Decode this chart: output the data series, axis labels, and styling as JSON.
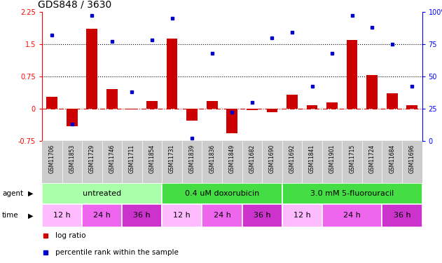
{
  "title": "GDS848 / 3630",
  "samples": [
    "GSM11706",
    "GSM11853",
    "GSM11729",
    "GSM11746",
    "GSM11711",
    "GSM11854",
    "GSM11731",
    "GSM11839",
    "GSM11836",
    "GSM11849",
    "GSM11682",
    "GSM11690",
    "GSM11692",
    "GSM11841",
    "GSM11901",
    "GSM11715",
    "GSM11724",
    "GSM11684",
    "GSM11696"
  ],
  "log_ratio": [
    0.28,
    -0.42,
    1.85,
    0.45,
    -0.02,
    0.18,
    1.62,
    -0.28,
    0.18,
    -0.58,
    -0.04,
    -0.08,
    0.32,
    0.08,
    0.14,
    1.6,
    0.78,
    0.35,
    0.07
  ],
  "percentile": [
    82,
    13,
    97,
    77,
    38,
    78,
    95,
    2,
    68,
    22,
    30,
    80,
    84,
    42,
    68,
    97,
    88,
    75,
    42
  ],
  "ylim_left": [
    -0.75,
    2.25
  ],
  "ylim_right": [
    0,
    100
  ],
  "yticks_left": [
    -0.75,
    0,
    0.75,
    1.5,
    2.25
  ],
  "yticks_right": [
    0,
    25,
    50,
    75,
    100
  ],
  "hlines": [
    0.75,
    1.5
  ],
  "agent_groups": [
    {
      "label": "untreated",
      "start": 0,
      "end": 6,
      "color": "#aaffaa"
    },
    {
      "label": "0.4 uM doxorubicin",
      "start": 6,
      "end": 12,
      "color": "#44dd44"
    },
    {
      "label": "3.0 mM 5-fluorouracil",
      "start": 12,
      "end": 19,
      "color": "#44dd44"
    }
  ],
  "time_groups": [
    {
      "label": "12 h",
      "start": 0,
      "end": 2,
      "color": "#ffbbff"
    },
    {
      "label": "24 h",
      "start": 2,
      "end": 4,
      "color": "#ee66ee"
    },
    {
      "label": "36 h",
      "start": 4,
      "end": 6,
      "color": "#cc33cc"
    },
    {
      "label": "12 h",
      "start": 6,
      "end": 8,
      "color": "#ffbbff"
    },
    {
      "label": "24 h",
      "start": 8,
      "end": 10,
      "color": "#ee66ee"
    },
    {
      "label": "36 h",
      "start": 10,
      "end": 12,
      "color": "#cc33cc"
    },
    {
      "label": "12 h",
      "start": 12,
      "end": 14,
      "color": "#ffbbff"
    },
    {
      "label": "24 h",
      "start": 14,
      "end": 17,
      "color": "#ee66ee"
    },
    {
      "label": "36 h",
      "start": 17,
      "end": 19,
      "color": "#cc33cc"
    }
  ],
  "bar_color": "#cc0000",
  "dot_color": "#0000cc",
  "bar_width": 0.55,
  "zero_line_color": "#cc0000",
  "background_color": "#ffffff",
  "agent_label_fontsize": 8,
  "time_label_fontsize": 8,
  "tick_label_fontsize": 7,
  "sample_label_fontsize": 5.5,
  "title_fontsize": 10,
  "label_area_color": "#cccccc"
}
